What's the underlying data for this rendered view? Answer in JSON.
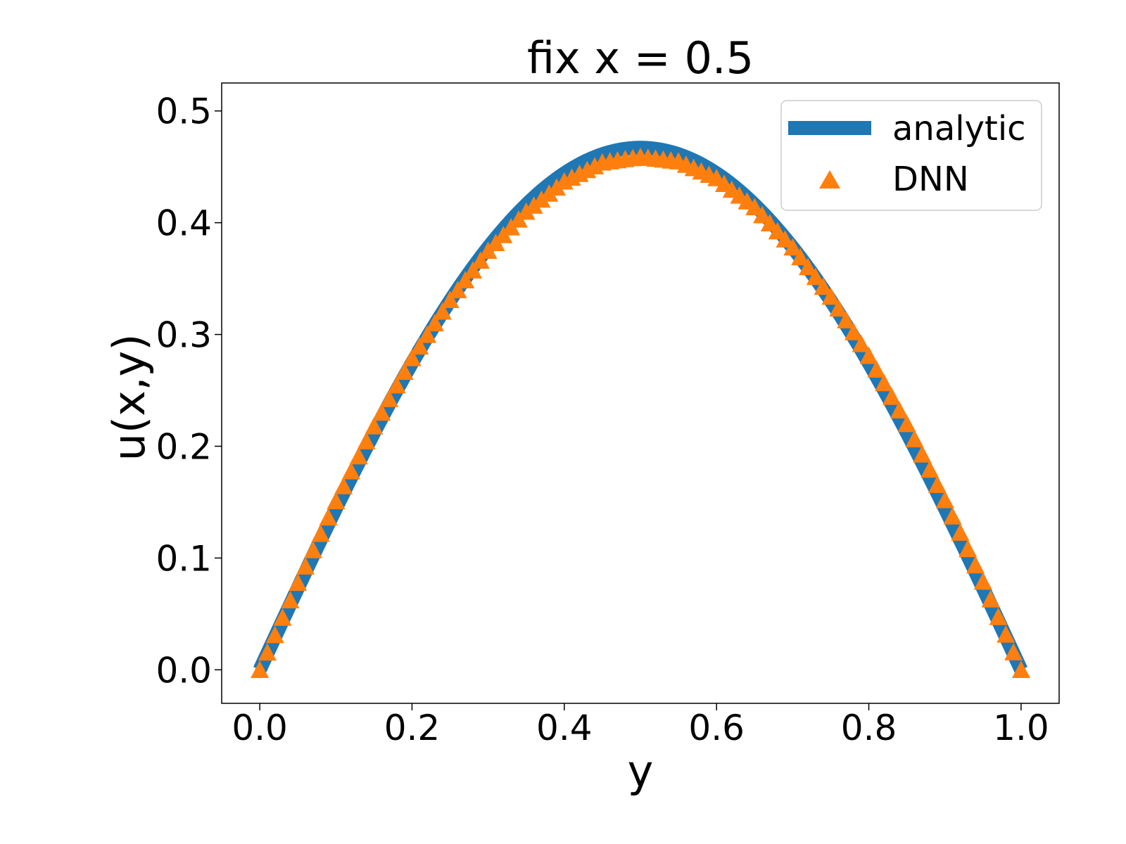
{
  "chart_data": {
    "type": "line",
    "title": "fix x = 0.5",
    "xlabel": "y",
    "ylabel": "u(x,y)",
    "xlim": [
      -0.05,
      1.05
    ],
    "ylim": [
      -0.03,
      0.525
    ],
    "xticks": [
      0.0,
      0.2,
      0.4,
      0.6,
      0.8,
      1.0
    ],
    "xtick_labels": [
      "0.0",
      "0.2",
      "0.4",
      "0.6",
      "0.8",
      "1.0"
    ],
    "yticks": [
      0.0,
      0.1,
      0.2,
      0.3,
      0.4,
      0.5
    ],
    "ytick_labels": [
      "0.0",
      "0.1",
      "0.2",
      "0.3",
      "0.4",
      "0.5"
    ],
    "grid": false,
    "legend_position": "upper right",
    "series": [
      {
        "name": "analytic",
        "style": "line",
        "color": "#1f77b4",
        "x": [
          0.0,
          0.05,
          0.1,
          0.15,
          0.2,
          0.25,
          0.3,
          0.35,
          0.4,
          0.45,
          0.5,
          0.55,
          0.6,
          0.65,
          0.7,
          0.75,
          0.8,
          0.85,
          0.9,
          0.95,
          1.0
        ],
        "y": [
          0.0,
          0.079,
          0.153,
          0.221,
          0.283,
          0.336,
          0.381,
          0.417,
          0.444,
          0.461,
          0.467,
          0.461,
          0.444,
          0.417,
          0.381,
          0.336,
          0.283,
          0.221,
          0.153,
          0.079,
          0.0
        ]
      },
      {
        "name": "DNN",
        "style": "triangle-markers",
        "color": "#ff7f0e",
        "x": [
          0.0,
          0.05,
          0.1,
          0.15,
          0.2,
          0.25,
          0.3,
          0.35,
          0.4,
          0.45,
          0.5,
          0.55,
          0.6,
          0.65,
          0.7,
          0.75,
          0.8,
          0.85,
          0.9,
          0.95,
          1.0
        ],
        "y": [
          0.0,
          0.078,
          0.151,
          0.218,
          0.279,
          0.331,
          0.375,
          0.41,
          0.437,
          0.454,
          0.459,
          0.455,
          0.44,
          0.414,
          0.378,
          0.334,
          0.281,
          0.22,
          0.152,
          0.079,
          0.0
        ]
      }
    ]
  }
}
